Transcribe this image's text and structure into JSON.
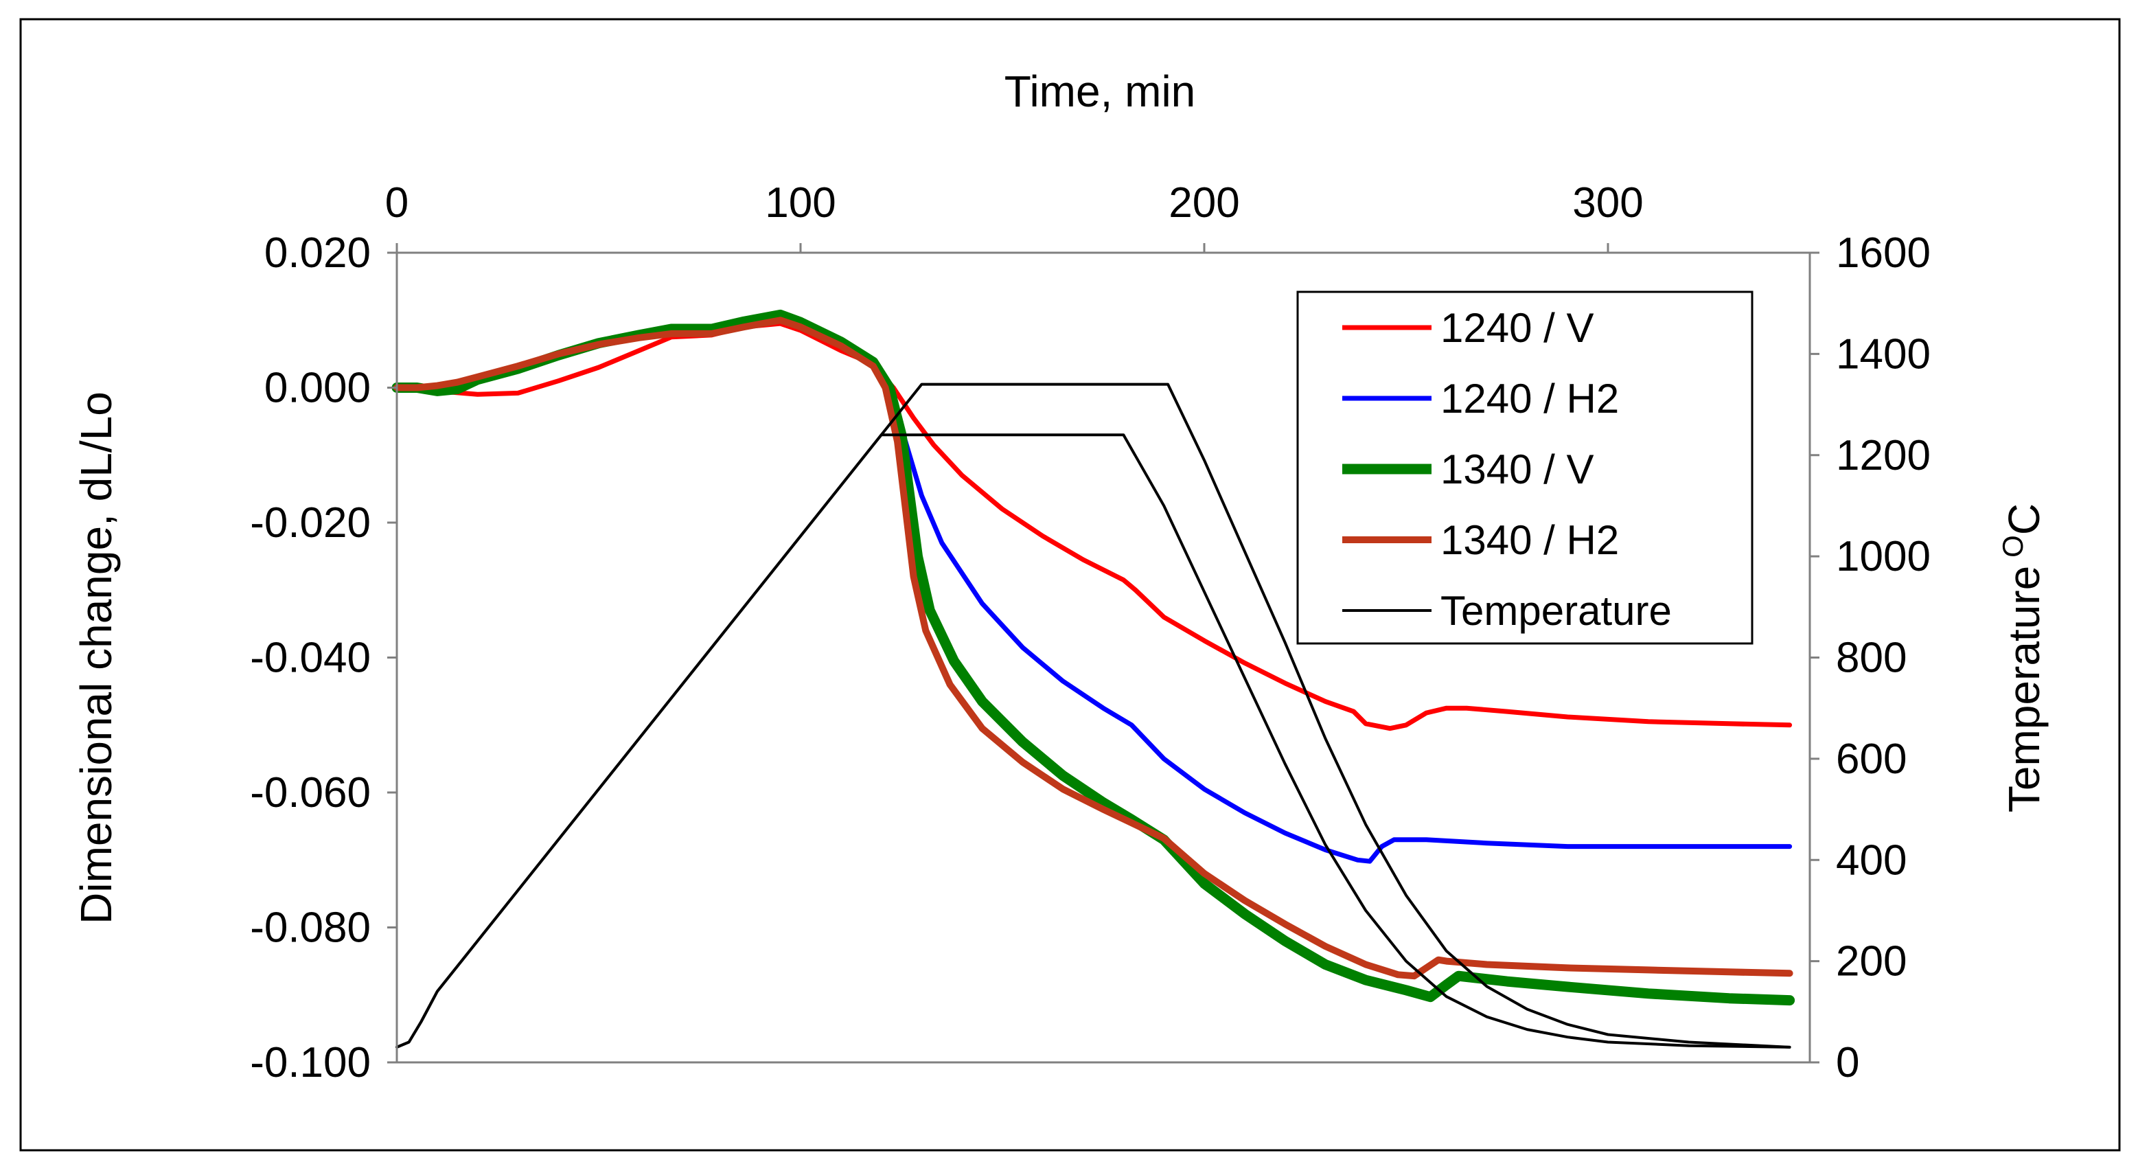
{
  "chart_data": {
    "type": "line",
    "title": "",
    "xlabel": "Time, min",
    "ylabel": "Dimensional change, dL/Lo",
    "y2label": "Temperature",
    "y2label_sup": "O",
    "y2label_unit": "C",
    "xlim": [
      0,
      350
    ],
    "ylim": [
      -0.1,
      0.02
    ],
    "y2lim": [
      0,
      1600
    ],
    "x_ticks": [
      0,
      100,
      200,
      300
    ],
    "x_tick_labels": [
      "0",
      "100",
      "200",
      "300"
    ],
    "y_ticks": [
      0.02,
      0.0,
      -0.02,
      -0.04,
      -0.06,
      -0.08,
      -0.1
    ],
    "y_tick_labels": [
      "0.020",
      "0.000",
      "-0.020",
      "-0.040",
      "-0.060",
      "-0.080",
      "-0.100"
    ],
    "y2_ticks": [
      1600,
      1400,
      1200,
      1000,
      800,
      600,
      400,
      200,
      0
    ],
    "y2_tick_labels": [
      "1600",
      "1400",
      "1200",
      "1000",
      "800",
      "600",
      "400",
      "200",
      "0"
    ],
    "grid": false,
    "legend_position": "top-right",
    "series": [
      {
        "name": "1240 / V",
        "axis": "left",
        "color": "#ff0000",
        "width": 7,
        "points": [
          [
            0,
            0
          ],
          [
            10,
            -0.0005
          ],
          [
            20,
            -0.001
          ],
          [
            30,
            -0.0008
          ],
          [
            40,
            0.001
          ],
          [
            50,
            0.003
          ],
          [
            60,
            0.0055
          ],
          [
            68,
            0.0075
          ],
          [
            78,
            0.0078
          ],
          [
            86,
            0.009
          ],
          [
            95,
            0.0095
          ],
          [
            100,
            0.0085
          ],
          [
            110,
            0.0055
          ],
          [
            118,
            0.0035
          ],
          [
            123,
            0
          ],
          [
            128,
            -0.0045
          ],
          [
            133,
            -0.0085
          ],
          [
            140,
            -0.013
          ],
          [
            150,
            -0.018
          ],
          [
            160,
            -0.022
          ],
          [
            170,
            -0.0255
          ],
          [
            180,
            -0.0285
          ],
          [
            183,
            -0.03
          ],
          [
            190,
            -0.034
          ],
          [
            200,
            -0.0375
          ],
          [
            210,
            -0.0408
          ],
          [
            220,
            -0.0438
          ],
          [
            230,
            -0.0465
          ],
          [
            237,
            -0.048
          ],
          [
            240,
            -0.0498
          ],
          [
            246,
            -0.0505
          ],
          [
            250,
            -0.05
          ],
          [
            255,
            -0.0482
          ],
          [
            260,
            -0.0475
          ],
          [
            265,
            -0.0475
          ],
          [
            275,
            -0.048
          ],
          [
            290,
            -0.0488
          ],
          [
            310,
            -0.0495
          ],
          [
            330,
            -0.0498
          ],
          [
            345,
            -0.05
          ]
        ]
      },
      {
        "name": "1240 / H2",
        "axis": "left",
        "color": "#0000ff",
        "width": 7,
        "points": [
          [
            0,
            0
          ],
          [
            10,
            -0.0005
          ],
          [
            20,
            0.001
          ],
          [
            30,
            0.0025
          ],
          [
            40,
            0.0045
          ],
          [
            50,
            0.0062
          ],
          [
            60,
            0.0075
          ],
          [
            68,
            0.0085
          ],
          [
            78,
            0.0085
          ],
          [
            86,
            0.0097
          ],
          [
            95,
            0.0105
          ],
          [
            100,
            0.0092
          ],
          [
            110,
            0.0065
          ],
          [
            118,
            0.0035
          ],
          [
            122,
            0
          ],
          [
            126,
            -0.008
          ],
          [
            130,
            -0.016
          ],
          [
            135,
            -0.023
          ],
          [
            145,
            -0.032
          ],
          [
            155,
            -0.0385
          ],
          [
            165,
            -0.0435
          ],
          [
            175,
            -0.0475
          ],
          [
            182,
            -0.05
          ],
          [
            190,
            -0.055
          ],
          [
            200,
            -0.0595
          ],
          [
            210,
            -0.063
          ],
          [
            220,
            -0.066
          ],
          [
            230,
            -0.0685
          ],
          [
            238,
            -0.07
          ],
          [
            241,
            -0.0702
          ],
          [
            244,
            -0.068
          ],
          [
            247,
            -0.067
          ],
          [
            255,
            -0.067
          ],
          [
            270,
            -0.0675
          ],
          [
            290,
            -0.068
          ],
          [
            320,
            -0.068
          ],
          [
            345,
            -0.068
          ]
        ]
      },
      {
        "name": "1340 / V",
        "axis": "left",
        "color": "#008000",
        "width": 15,
        "points": [
          [
            0,
            0
          ],
          [
            5,
            0
          ],
          [
            10,
            -0.0005
          ],
          [
            15,
            -0.0002
          ],
          [
            20,
            0.0012
          ],
          [
            30,
            0.0028
          ],
          [
            40,
            0.0048
          ],
          [
            50,
            0.0066
          ],
          [
            60,
            0.0078
          ],
          [
            68,
            0.0087
          ],
          [
            78,
            0.0087
          ],
          [
            86,
            0.0098
          ],
          [
            95,
            0.0108
          ],
          [
            100,
            0.0097
          ],
          [
            110,
            0.0068
          ],
          [
            118,
            0.0038
          ],
          [
            122,
            0
          ],
          [
            125,
            -0.007
          ],
          [
            127,
            -0.016
          ],
          [
            129,
            -0.025
          ],
          [
            132,
            -0.033
          ],
          [
            138,
            -0.0405
          ],
          [
            145,
            -0.0465
          ],
          [
            155,
            -0.0525
          ],
          [
            165,
            -0.0575
          ],
          [
            175,
            -0.0615
          ],
          [
            182,
            -0.064
          ],
          [
            190,
            -0.067
          ],
          [
            200,
            -0.0735
          ],
          [
            210,
            -0.078
          ],
          [
            220,
            -0.082
          ],
          [
            230,
            -0.0855
          ],
          [
            240,
            -0.0878
          ],
          [
            250,
            -0.0893
          ],
          [
            256,
            -0.0903
          ],
          [
            260,
            -0.0885
          ],
          [
            263,
            -0.0872
          ],
          [
            275,
            -0.088
          ],
          [
            290,
            -0.0888
          ],
          [
            310,
            -0.0898
          ],
          [
            330,
            -0.0905
          ],
          [
            345,
            -0.0908
          ]
        ]
      },
      {
        "name": "1340 / H2",
        "axis": "left",
        "color": "#c0381a",
        "width": 10,
        "points": [
          [
            0,
            0
          ],
          [
            5,
            0
          ],
          [
            10,
            0.0003
          ],
          [
            15,
            0.0008
          ],
          [
            20,
            0.0016
          ],
          [
            30,
            0.0032
          ],
          [
            40,
            0.005
          ],
          [
            50,
            0.0064
          ],
          [
            60,
            0.0074
          ],
          [
            68,
            0.008
          ],
          [
            78,
            0.008
          ],
          [
            86,
            0.009
          ],
          [
            95,
            0.01
          ],
          [
            100,
            0.009
          ],
          [
            110,
            0.0062
          ],
          [
            118,
            0.0032
          ],
          [
            121,
            0
          ],
          [
            124,
            -0.008
          ],
          [
            126,
            -0.018
          ],
          [
            128,
            -0.028
          ],
          [
            131,
            -0.036
          ],
          [
            137,
            -0.044
          ],
          [
            145,
            -0.0505
          ],
          [
            155,
            -0.0555
          ],
          [
            165,
            -0.0595
          ],
          [
            175,
            -0.0625
          ],
          [
            182,
            -0.0645
          ],
          [
            190,
            -0.0668
          ],
          [
            200,
            -0.072
          ],
          [
            210,
            -0.076
          ],
          [
            220,
            -0.0795
          ],
          [
            230,
            -0.0828
          ],
          [
            240,
            -0.0855
          ],
          [
            248,
            -0.087
          ],
          [
            252,
            -0.0872
          ],
          [
            255,
            -0.086
          ],
          [
            258,
            -0.0848
          ],
          [
            260,
            -0.085
          ],
          [
            270,
            -0.0855
          ],
          [
            290,
            -0.086
          ],
          [
            310,
            -0.0863
          ],
          [
            330,
            -0.0866
          ],
          [
            345,
            -0.0868
          ]
        ]
      },
      {
        "name": "Temperature",
        "axis": "right",
        "color": "#000000",
        "width": 4,
        "points": [
          [
            0,
            30
          ],
          [
            3,
            40
          ],
          [
            6,
            80
          ],
          [
            10,
            140
          ],
          [
            120,
            1240
          ],
          [
            180,
            1240
          ],
          [
            190,
            1100
          ],
          [
            200,
            930
          ],
          [
            210,
            760
          ],
          [
            220,
            590
          ],
          [
            230,
            430
          ],
          [
            240,
            300
          ],
          [
            250,
            200
          ],
          [
            260,
            130
          ],
          [
            270,
            90
          ],
          [
            280,
            65
          ],
          [
            290,
            50
          ],
          [
            300,
            40
          ],
          [
            320,
            33
          ],
          [
            345,
            30
          ]
        ]
      },
      {
        "name": "Temperature",
        "axis": "right",
        "color": "#000000",
        "width": 4,
        "in_legend": false,
        "points": [
          [
            0,
            30
          ],
          [
            3,
            40
          ],
          [
            6,
            80
          ],
          [
            10,
            140
          ],
          [
            130,
            1340
          ],
          [
            191,
            1340
          ],
          [
            200,
            1190
          ],
          [
            210,
            1010
          ],
          [
            220,
            830
          ],
          [
            230,
            640
          ],
          [
            240,
            470
          ],
          [
            250,
            330
          ],
          [
            260,
            220
          ],
          [
            270,
            150
          ],
          [
            280,
            105
          ],
          [
            290,
            75
          ],
          [
            300,
            55
          ],
          [
            320,
            40
          ],
          [
            345,
            30
          ]
        ]
      }
    ]
  }
}
